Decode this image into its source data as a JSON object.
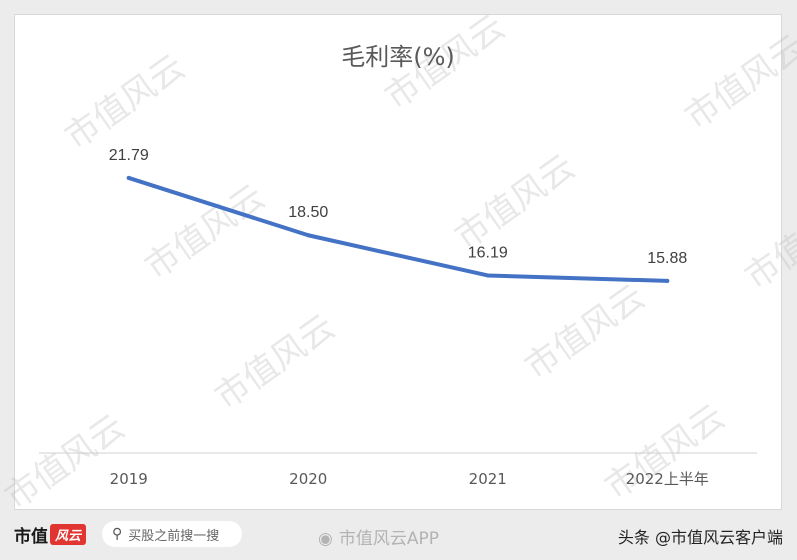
{
  "chart_data": {
    "type": "line",
    "title": "毛利率(%)",
    "categories": [
      "2019",
      "2020",
      "2021",
      "2022上半年"
    ],
    "values": [
      21.79,
      18.5,
      16.19,
      15.88
    ],
    "value_labels": [
      "21.79",
      "18.50",
      "16.19",
      "15.88"
    ],
    "ylim": [
      6,
      25
    ],
    "grid": false,
    "line_color": "#4472c4"
  },
  "watermark": {
    "text": "市值风云"
  },
  "footer": {
    "brand_name": "市值",
    "brand_badge": "风云",
    "search_placeholder": "买股之前搜一搜",
    "app_watermark": "市值风云APP",
    "source": "头条 @市值风云客户端"
  }
}
